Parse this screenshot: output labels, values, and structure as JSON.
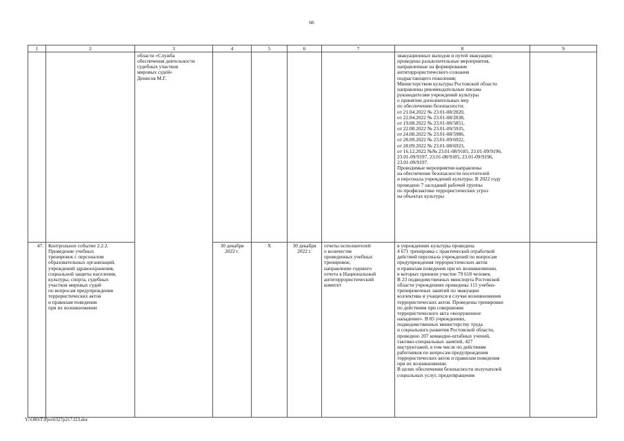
{
  "page_number": "66",
  "table": {
    "headers": [
      "1",
      "2",
      "3",
      "4",
      "5",
      "6",
      "7",
      "8",
      "9"
    ],
    "rows": [
      {
        "num": "",
        "event": "",
        "responsible": "области «Служба\nобеспечения деятельности\nсудебных участков\nмировых судей»\nДенисов М.Г.",
        "planned_date": "",
        "col5": "",
        "actual_date": "",
        "result": "",
        "info": "эвакуационных выходов и путей эвакуации;\nпроведены разъяснительные мероприятия,\nнаправленные на формирование\nантитеррористического сознания\nподрастающего поколения;\nМинистерством культуры Ростовской области\nнаправлены рекомендательные письма\nруководителям учреждений культуры\nо принятии дополнительных мер\nпо обеспечению безопасности:\nот 21.04.2022 № 23.01-08/2820,\nот 22.04.2022 № 23.01-08/2838,\nот 19.08.2022 № 23.01-08/5851,\nот 22.08.2022 № 23.01-09/5935,\nот 24.08.2022 № 23.01-08/5986,\nот 28.09.2022 № 23.01-09/6922,\nот 28.09.2022 № 23.01-08/6923,\nот 16.12.2022 №№ 23.01-08/9185, 23.01-09/9196,\n23.01-09/9197, 23.01-08/9185, 23.01-09/9196,\n23.01-09/9197.\nПроводимые мероприятия направлены\nна обеспечение безопасности посетителей\nи персонала учреждений культуры. В 2022 году\nпроведено 7 заседаний рабочей группы\nпо профилактике террористических угроз\nна объектах культуры",
        "col9": ""
      },
      {
        "num": "47.",
        "event": "Контрольное событие 2.2.2.\nПроведение учебных\nтренировок с персоналом\nобразовательных организаций,\nучреждений здравоохранения,\nсоциальной защиты населения,\nкультуры, спорта, судебных\nучастков мировых судей\nпо вопросам предупреждения\nтеррористических актов\nи правилам поведения\nпри их возникновении",
        "planned_date": "30 декабря\n2022 г.",
        "col5": "Х",
        "actual_date": "30 декабря\n2022 г.",
        "result": "отчеты исполнителей\nо количестве\nпроведенных учебных\nтренировок;\nнаправление годового\nотчета в Национальный\nантитеррористический\nкомитет",
        "info": "в учреждениях культуры проведена\n4 671 тренировка с практической отработкой\nдействий персонала учреждений по вопросам\nпредупреждения террористических актов\nи правилам поведения при их возникновении,\nв которых приняли участие 79 618 человек.\nВ 23 подведомственных минспорта Ростовской\nобласти учреждениях проведены 115 учебно-\nтренировочных занятий по эвакуации\nколлектива и учащихся в случае возникновения\nтеррористических актов. Проведены тренировки\nпо действиям при совершении\nтеррористического акта «вооруженное\nнападение». В 85 учреждениях,\nподведомственных министерству труда\nи социального развития Ростовской области,\nпроведено 207 командно-штабных учений,\nтактико-специальных занятий, 427\nинструктажей, в том числе по действиям\nработников по вопросам предупреждения\nтеррористических актов и правилам поведения\nпри их возникновении.\nВ целях обеспечения безопасности получателей\nсоциальных услуг, предотвращения",
        "col9": ""
      }
    ]
  },
  "footer": "Y:\\ORST\\Ppo\\0327p217.f23.doc"
}
